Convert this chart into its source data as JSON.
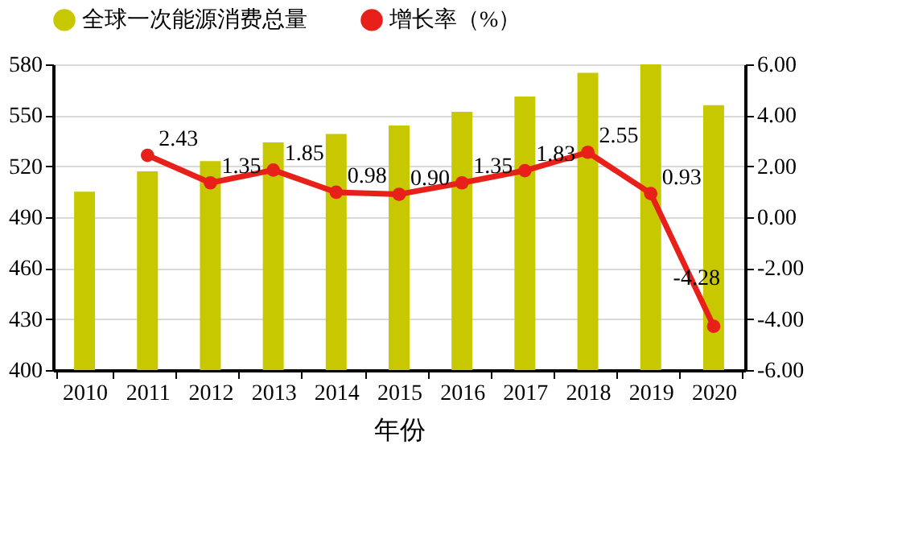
{
  "chart_data": {
    "type": "bar",
    "xlabel": "年份",
    "categories": [
      "2010",
      "2011",
      "2012",
      "2013",
      "2014",
      "2015",
      "2016",
      "2017",
      "2018",
      "2019",
      "2020"
    ],
    "series": [
      {
        "name": "全球一次能源消费总量",
        "color": "#c8c800",
        "values": [
          505,
          517,
          523,
          534,
          539,
          544,
          552,
          561,
          575,
          580,
          556
        ]
      },
      {
        "name": "增长率（%）",
        "type": "line",
        "axis": "y2",
        "color": "#e8201a",
        "marker": "circle",
        "values": [
          null,
          2.43,
          1.35,
          1.85,
          0.98,
          0.9,
          1.35,
          1.83,
          2.55,
          0.93,
          -4.28
        ],
        "value_labels": [
          null,
          "2.43",
          "1.35",
          "1.85",
          "0.98",
          "0.90",
          "1.35",
          "1.83",
          "2.55",
          "0.93",
          "-4.28"
        ]
      }
    ],
    "ylim": [
      400,
      580
    ],
    "yticks": [
      400,
      430,
      460,
      490,
      520,
      550,
      580
    ],
    "y2lim": [
      -6,
      6
    ],
    "y2ticks": [
      {
        "value": -6,
        "label": "-6.00"
      },
      {
        "value": -4,
        "label": "-4.00"
      },
      {
        "value": -2,
        "label": "-2.00"
      },
      {
        "value": 0,
        "label": "0.00"
      },
      {
        "value": 2,
        "label": "2.00"
      },
      {
        "value": 4,
        "label": "4.00"
      },
      {
        "value": 6,
        "label": "6.00"
      }
    ],
    "grid": "y",
    "legend": "top"
  }
}
